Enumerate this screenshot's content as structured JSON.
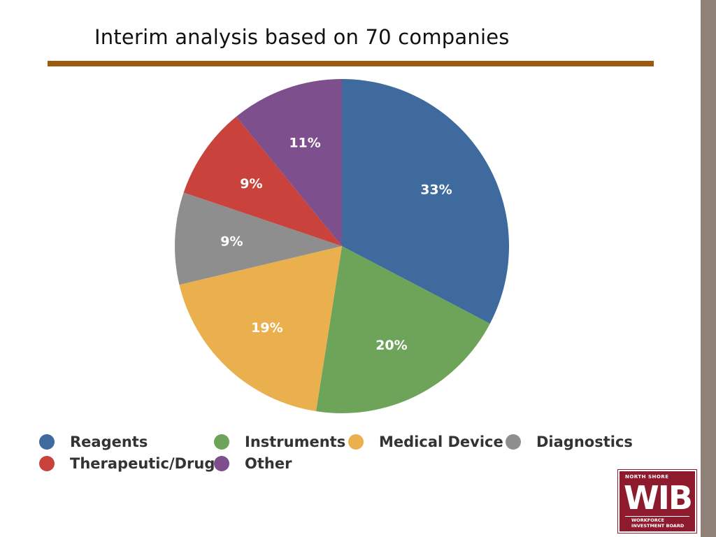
{
  "slide": {
    "title": "Interim analysis based on 70 companies"
  },
  "colors": {
    "accent_rule": "#9a5a10",
    "right_bar": "#8f8178",
    "logo_bg": "#8e1b2d"
  },
  "logo": {
    "top_text": "NORTH SHORE",
    "main_text": "WIB",
    "sub_text_line1": "WORKFORCE",
    "sub_text_line2": "INVESTMENT BOARD"
  },
  "chart_data": {
    "type": "pie",
    "title": "",
    "slices": [
      {
        "name": "Reagents",
        "value": 33,
        "label": "33%",
        "color": "#3e6a9d"
      },
      {
        "name": "Instruments",
        "value": 20,
        "label": "20%",
        "color": "#6ea35a"
      },
      {
        "name": "Medical Device",
        "value": 19,
        "label": "19%",
        "color": "#ebb04e"
      },
      {
        "name": "Diagnostics",
        "value": 9,
        "label": "9%",
        "color": "#8e8e8e"
      },
      {
        "name": "Therapeutic/Drug",
        "value": 9,
        "label": "9%",
        "color": "#c9423c"
      },
      {
        "name": "Other",
        "value": 11,
        "label": "11%",
        "color": "#7e4f8d"
      }
    ],
    "legend_placement": "bottom"
  }
}
